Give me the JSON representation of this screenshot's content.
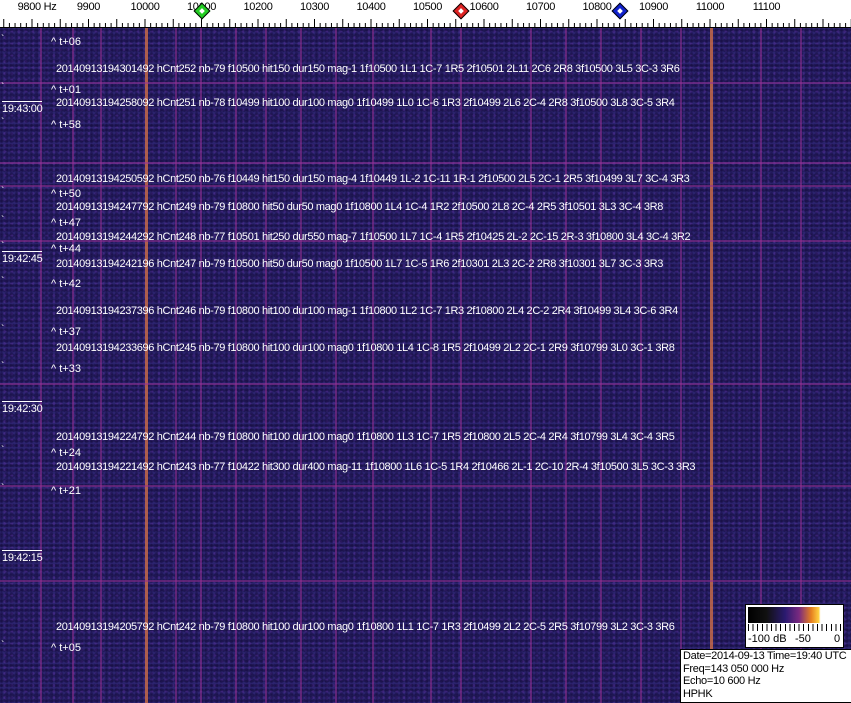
{
  "axis": {
    "unit_label": "9800 Hz",
    "ticks": [
      "9900",
      "10000",
      "10100",
      "10200",
      "10300",
      "10400",
      "10500",
      "10600",
      "10700",
      "10800",
      "10900",
      "11000",
      "11100"
    ],
    "markers": [
      {
        "name": "green-marker",
        "freq_hz": 10100,
        "color": "#22cc22"
      },
      {
        "name": "red-marker",
        "freq_hz": 10560,
        "color": "#dd2222"
      },
      {
        "name": "blue-marker",
        "freq_hz": 10840,
        "color": "#1122cc"
      }
    ]
  },
  "colors": {
    "background": "#2c2470",
    "strong_line": "#c46a4a",
    "faint_line": "#963296"
  },
  "times": [
    "19:43:00",
    "19:42:45",
    "19:42:30",
    "19:42:15"
  ],
  "offsets": [
    "^ t+06",
    "^ t+01",
    "^ t+58",
    "^ t+50",
    "^ t+47",
    "^ t+44",
    "^ t+42",
    "^ t+37",
    "^ t+33",
    "^ t+24",
    "^ t+21",
    "^ t+05"
  ],
  "detections": [
    "20140913194301492 hCnt252 nb-79 f10500 hit150 dur150 mag-1 1f10500 1L1 1C-7 1R5 2f10501 2L11 2C6 2R8 3f10500 3L5 3C-3 3R6",
    "20140913194258092 hCnt251 nb-78 f10499 hit100 dur100 mag0 1f10499 1L0 1C-6 1R3 2f10499 2L6 2C-4 2R8 3f10500 3L8 3C-5 3R4",
    "20140913194250592 hCnt250 nb-76 f10449 hit150 dur150 mag-4 1f10449 1L-2 1C-11 1R-1 2f10500 2L5 2C-1 2R5 3f10499 3L7 3C-4 3R3",
    "20140913194247792 hCnt249 nb-79 f10800 hit50 dur50 mag0 1f10800 1L4 1C-4 1R2 2f10500 2L8 2C-4 2R5 3f10501 3L3 3C-4 3R8",
    "20140913194244292 hCnt248 nb-77 f10501 hit250 dur550 mag-7 1f10500 1L7 1C-4 1R5 2f10425 2L-2 2C-15 2R-3 3f10800 3L4 3C-4 3R2",
    "20140913194242196 hCnt247 nb-79 f10500 hit50 dur50 mag0 1f10500 1L7 1C-5 1R6 2f10301 2L3 2C-2 2R8 3f10301 3L7 3C-3 3R3",
    "20140913194237396 hCnt246 nb-79 f10800 hit100 dur100 mag-1 1f10800 1L2 1C-7 1R3 2f10800 2L4 2C-2 2R4 3f10499 3L4 3C-6 3R4",
    "20140913194233696 hCnt245 nb-79 f10800 hit100 dur100 mag0 1f10800 1L4 1C-8 1R5 2f10499 2L2 2C-1 2R9 3f10799 3L0 3C-1 3R8",
    "20140913194224792 hCnt244 nb-79 f10800 hit100 dur100 mag0 1f10800 1L3 1C-7 1R5 2f10800 2L5 2C-4 2R4 3f10799 3L4 3C-4 3R5",
    "20140913194221492 hCnt243 nb-77 f10422 hit300 dur400 mag-11 1f10800 1L6 1C-5 1R4 2f10466 2L-1 2C-10 2R-4 3f10500 3L5 3C-3 3R3",
    "20140913194205792 hCnt242 nb-79 f10800 hit100 dur100 mag0 1f10800 1L1 1C-7 1R3 2f10499 2L2 2C-5 2R5 3f10799 3L2 3C-3 3R6"
  ],
  "colorbar": {
    "labels": [
      "-100 dB",
      "-50",
      "0"
    ]
  },
  "info": {
    "date_time": "Date=2014-09-13 Time=19:40 UTC",
    "freq": "Freq=143 050 000 Hz",
    "echo": "Echo=10 600 Hz",
    "station": "HPHK"
  }
}
